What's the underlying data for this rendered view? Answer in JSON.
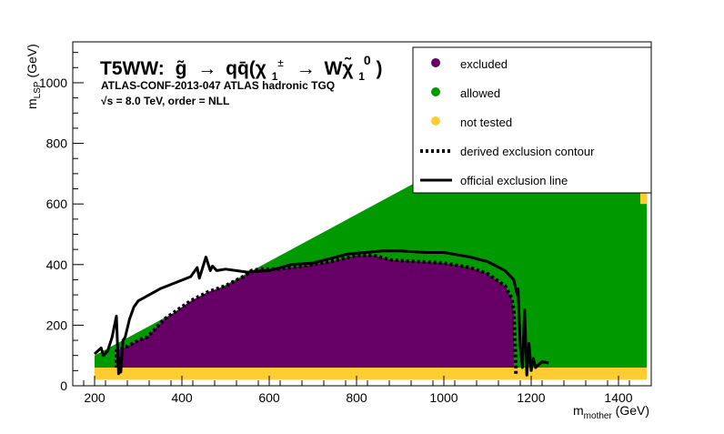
{
  "chart_data": {
    "type": "scatter",
    "title_parts": {
      "model": "T5WW:",
      "gluino": "g̃",
      "arrow": "→",
      "qq": "qq̄(χ",
      "chi_sub": "1",
      "chi_sup": "±",
      "arrow2": "→",
      "w_chi": "Wχ̃",
      "lsp_sub": "1",
      "lsp_sup": "0",
      "close": ")"
    },
    "subtitle_line1": "ATLAS-CONF-2013-047  ATLAS hadronic TGQ",
    "subtitle_line2": "√s =  8.0 TeV, order =  NLL",
    "xlabel": {
      "main": "m",
      "sub": "mother",
      "unit": " (GeV)"
    },
    "ylabel": {
      "main": "m",
      "sub": "LSP",
      "unit": " (GeV)"
    },
    "xlim": [
      150,
      1475
    ],
    "ylim": [
      0,
      1135
    ],
    "xticks": [
      "200",
      "400",
      "600",
      "800",
      "1000",
      "1200",
      "1400"
    ],
    "yticks": [
      "0",
      "200",
      "400",
      "600",
      "800",
      "1000"
    ],
    "grid": false,
    "legend_position": "top-right",
    "legend": [
      {
        "label": "excluded",
        "marker": "dot",
        "color": "#660066"
      },
      {
        "label": "allowed",
        "marker": "dot",
        "color": "#009900"
      },
      {
        "label": "not tested",
        "marker": "dot",
        "color": "#ffcc33"
      },
      {
        "label": "derived exclusion contour",
        "marker": "dotted-line",
        "color": "#000000"
      },
      {
        "label": " official exclusion line",
        "marker": "solid-line",
        "color": "#000000"
      }
    ],
    "colors": {
      "excluded": "#660066",
      "allowed": "#009900",
      "not_tested": "#ffcc33"
    },
    "regions": {
      "allowed": [
        [
          200,
          60
        ],
        [
          200,
          100
        ],
        [
          1115,
          810
        ],
        [
          1465,
          810
        ],
        [
          1465,
          60
        ]
      ],
      "not_tested": [
        [
          200,
          20
        ],
        [
          200,
          60
        ],
        [
          1465,
          60
        ],
        [
          1465,
          20
        ]
      ],
      "not_tested_corner": [
        [
          1450,
          600
        ],
        [
          1450,
          650
        ],
        [
          1465,
          650
        ],
        [
          1465,
          600
        ]
      ],
      "excluded": [
        [
          250,
          60
        ],
        [
          250,
          115
        ],
        [
          275,
          130
        ],
        [
          300,
          150
        ],
        [
          320,
          160
        ],
        [
          360,
          220
        ],
        [
          420,
          280
        ],
        [
          460,
          310
        ],
        [
          500,
          330
        ],
        [
          540,
          360
        ],
        [
          560,
          380
        ],
        [
          580,
          385
        ],
        [
          620,
          385
        ],
        [
          680,
          395
        ],
        [
          740,
          410
        ],
        [
          800,
          430
        ],
        [
          840,
          430
        ],
        [
          880,
          415
        ],
        [
          940,
          410
        ],
        [
          1000,
          405
        ],
        [
          1060,
          390
        ],
        [
          1100,
          370
        ],
        [
          1140,
          330
        ],
        [
          1155,
          290
        ],
        [
          1160,
          250
        ],
        [
          1160,
          60
        ]
      ]
    },
    "derived_contour": [
      [
        1165,
        40
      ],
      [
        1165,
        60
      ],
      [
        1160,
        250
      ],
      [
        1155,
        290
      ],
      [
        1140,
        330
      ],
      [
        1100,
        370
      ],
      [
        1060,
        390
      ],
      [
        1000,
        405
      ],
      [
        940,
        410
      ],
      [
        880,
        415
      ],
      [
        840,
        430
      ],
      [
        800,
        430
      ],
      [
        740,
        410
      ],
      [
        680,
        395
      ],
      [
        620,
        385
      ],
      [
        580,
        385
      ],
      [
        560,
        380
      ],
      [
        540,
        360
      ],
      [
        500,
        330
      ],
      [
        460,
        310
      ],
      [
        420,
        280
      ],
      [
        360,
        220
      ],
      [
        320,
        160
      ],
      [
        300,
        150
      ],
      [
        275,
        130
      ],
      [
        250,
        115
      ],
      [
        250,
        60
      ]
    ],
    "official_line": [
      [
        200,
        105
      ],
      [
        215,
        125
      ],
      [
        220,
        100
      ],
      [
        230,
        115
      ],
      [
        240,
        160
      ],
      [
        250,
        230
      ],
      [
        255,
        40
      ],
      [
        258,
        90
      ],
      [
        260,
        45
      ],
      [
        265,
        150
      ],
      [
        270,
        160
      ],
      [
        280,
        220
      ],
      [
        290,
        260
      ],
      [
        300,
        280
      ],
      [
        350,
        320
      ],
      [
        420,
        360
      ],
      [
        435,
        390
      ],
      [
        440,
        355
      ],
      [
        455,
        425
      ],
      [
        465,
        380
      ],
      [
        470,
        395
      ],
      [
        480,
        380
      ],
      [
        500,
        385
      ],
      [
        550,
        375
      ],
      [
        600,
        380
      ],
      [
        650,
        400
      ],
      [
        700,
        405
      ],
      [
        740,
        420
      ],
      [
        780,
        435
      ],
      [
        820,
        440
      ],
      [
        860,
        445
      ],
      [
        900,
        445
      ],
      [
        960,
        440
      ],
      [
        1000,
        440
      ],
      [
        1060,
        425
      ],
      [
        1100,
        410
      ],
      [
        1140,
        380
      ],
      [
        1160,
        350
      ],
      [
        1168,
        300
      ],
      [
        1170,
        320
      ],
      [
        1175,
        130
      ],
      [
        1180,
        60
      ],
      [
        1185,
        250
      ],
      [
        1190,
        35
      ],
      [
        1195,
        140
      ],
      [
        1200,
        50
      ],
      [
        1205,
        90
      ],
      [
        1210,
        60
      ],
      [
        1225,
        80
      ],
      [
        1240,
        75
      ]
    ]
  }
}
